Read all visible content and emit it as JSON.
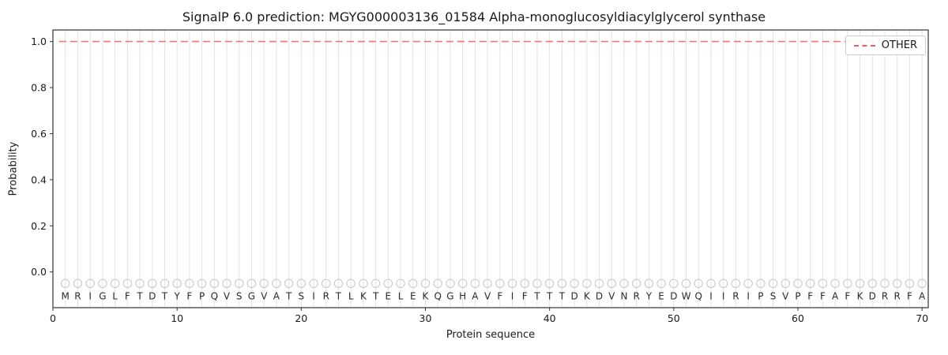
{
  "chart_data": {
    "type": "line",
    "title": "SignalP 6.0 prediction: MGYG000003136_01584 Alpha-monoglucosyldiacylglycerol synthase",
    "xlabel": "Protein sequence",
    "ylabel": "Probability",
    "xlim": [
      0,
      70.5
    ],
    "ylim": [
      -0.155,
      1.05
    ],
    "xticks": [
      0,
      10,
      20,
      30,
      40,
      50,
      60,
      70
    ],
    "yticks": [
      0.0,
      0.2,
      0.4,
      0.6,
      0.8,
      1.0
    ],
    "ytick_labels": [
      "0.0",
      "0.2",
      "0.4",
      "0.6",
      "0.8",
      "1.0"
    ],
    "sequence": "MRIGLFTDTYFPQVSGVATSIRTLKTELEKQGHAVFIFTTTDKDVNRYEDWQIIRIPSVPFFAFKDRRFA",
    "sequence_positions": [
      1,
      70
    ],
    "marker_y": -0.05,
    "series": [
      {
        "name": "OTHER",
        "type": "line",
        "dash": true,
        "color": "#f25d5d",
        "y_constant": 1.0,
        "x_start": 0.5,
        "x_end": 70.2
      }
    ],
    "legend": {
      "position": "upper right",
      "entries": [
        "OTHER"
      ]
    },
    "grid": {
      "vertical_per_residue": true,
      "horizontal": false
    },
    "colors": {
      "gridline": "#e3e3e3",
      "marker_stroke": "#c9c9c9",
      "letter": "#2b2b2b",
      "spine": "#333333",
      "tick_label": "#1a1a1a",
      "legend_border": "#cccccc",
      "line": "#f25d5d",
      "background": "#ffffff"
    }
  }
}
